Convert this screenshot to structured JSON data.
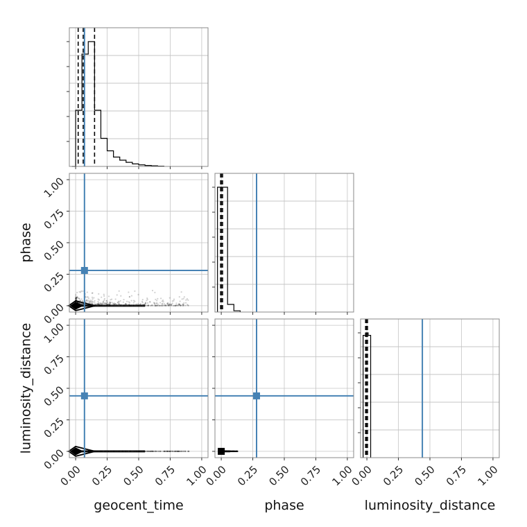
{
  "chart_data": {
    "type": "corner",
    "parameters": [
      "geocent_time",
      "phase",
      "luminosity_distance"
    ],
    "range": [
      -0.05,
      1.05
    ],
    "ticks": [
      0,
      0.25,
      0.5,
      0.75,
      1
    ],
    "tick_labels": [
      "0.00",
      "0.25",
      "0.50",
      "0.75",
      "1.00"
    ],
    "grid": true,
    "truth": {
      "color": "#4682b4",
      "values": {
        "geocent_time": 0.07,
        "phase": 0.28,
        "luminosity_distance": 0.44
      }
    },
    "quantile_lines": {
      "geocent_time": [
        0.02,
        0.06,
        0.15
      ],
      "phase": [
        -0.005,
        0.0,
        0.01
      ],
      "luminosity_distance": [
        -0.01,
        -0.005,
        0.005
      ]
    },
    "histograms": {
      "geocent_time": {
        "edges": [
          -0.03,
          0.0,
          0.05,
          0.1,
          0.15,
          0.2,
          0.25,
          0.3,
          0.35,
          0.4,
          0.45,
          0.5,
          0.55,
          0.6,
          0.65,
          0.7
        ],
        "counts": [
          0.0,
          0.18,
          0.36,
          0.4,
          0.18,
          0.09,
          0.05,
          0.03,
          0.02,
          0.013,
          0.008,
          0.005,
          0.003,
          0.002,
          0.001
        ]
      },
      "phase": {
        "edges": [
          -0.03,
          0.0,
          0.05,
          0.1,
          0.15
        ],
        "counts": [
          0.98,
          0.98,
          0.06,
          0.01
        ]
      },
      "luminosity_distance": {
        "edges": [
          -0.03,
          -0.01,
          0.01,
          0.03
        ],
        "counts": [
          0.98,
          1.0,
          0.98
        ]
      }
    },
    "scatter_tails": {
      "geocent_time_vs_phase": {
        "x_max": 0.9,
        "y_spread": 0.2
      },
      "geocent_time_vs_luminosity_distance": {
        "x_max": 0.9,
        "y_spread": 0.004
      },
      "phase_vs_luminosity_distance": {
        "x_max": 0.13,
        "y_spread": 0.004
      }
    }
  }
}
